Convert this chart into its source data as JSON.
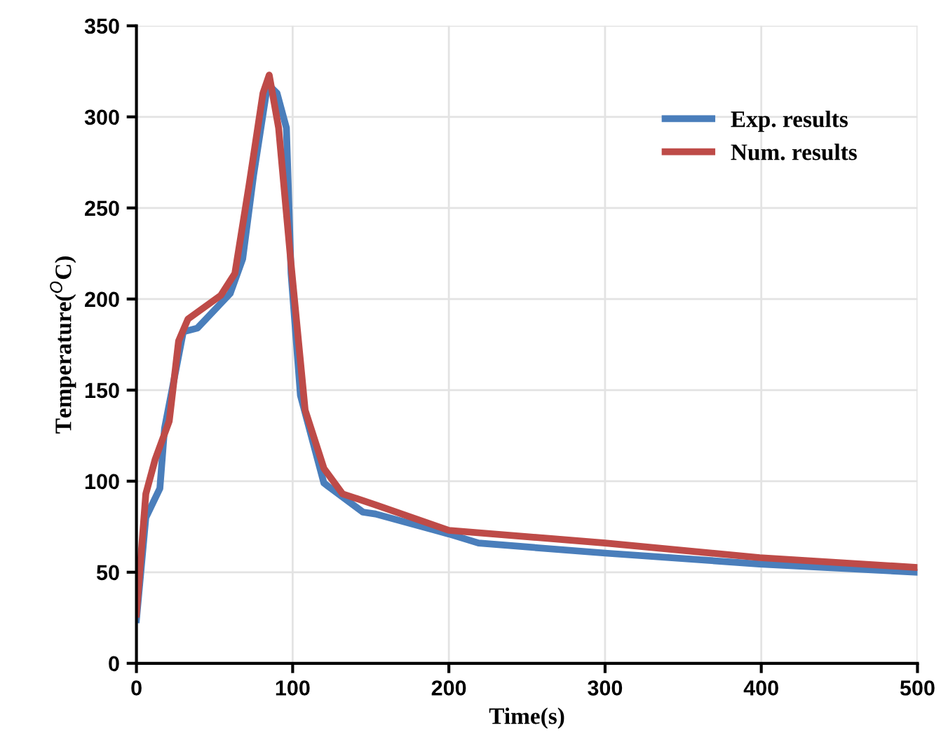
{
  "chart_data": {
    "type": "line",
    "xlabel": "Time(s)",
    "ylabel": "Temperature($^{O}$C)",
    "xlim": [
      0,
      500
    ],
    "ylim": [
      0,
      350
    ],
    "xticks": [
      0,
      100,
      200,
      300,
      400,
      500
    ],
    "yticks": [
      0,
      50,
      100,
      150,
      200,
      250,
      300,
      350
    ],
    "grid": true,
    "legend": "top right",
    "marker": "none",
    "line_style": "solid",
    "series": [
      {
        "name": "Exp. results",
        "color": "#4a7ebb",
        "x": [
          0,
          6,
          15,
          18,
          30,
          39,
          60,
          68,
          75,
          84,
          90,
          96,
          99,
          105,
          120,
          123,
          145,
          153,
          200,
          219,
          300,
          399,
          500
        ],
        "values": [
          24,
          80,
          96,
          129,
          182,
          184,
          203,
          222,
          268,
          318,
          313,
          294,
          214,
          147,
          99,
          97,
          83,
          82,
          71,
          66,
          60.5,
          54.5,
          50
        ]
      },
      {
        "name": "Num. results",
        "color": "#be4b48",
        "x": [
          0,
          6,
          12,
          21,
          27,
          33,
          54,
          63,
          72,
          81,
          85,
          91,
          99,
          108,
          120,
          132,
          153,
          200,
          300,
          399,
          500
        ],
        "values": [
          27,
          93,
          112,
          133,
          177,
          189,
          202,
          214,
          262,
          313,
          323,
          294,
          219,
          139,
          107,
          93,
          87,
          73,
          66,
          58,
          52.6
        ]
      }
    ]
  }
}
